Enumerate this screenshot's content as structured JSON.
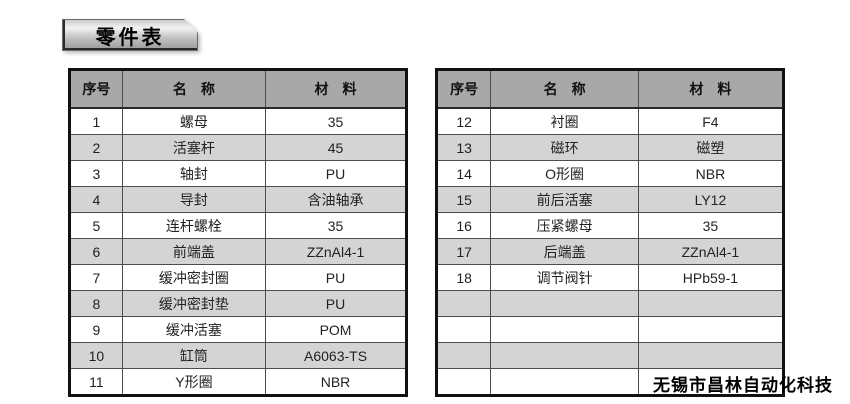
{
  "page": {
    "title": "零件表",
    "footer": "无锡市昌林自动化科技"
  },
  "colors": {
    "header_bg": "#a8a8a8",
    "alt_row_bg": "#d4d4d4",
    "row_bg": "#ffffff",
    "outer_border": "#111111",
    "inner_border": "#4d4d4d"
  },
  "tables": [
    {
      "name": "parts-table-left",
      "headers": [
        "序号",
        "名　称",
        "材　料"
      ],
      "rows": [
        {
          "seq": "1",
          "name": "螺母",
          "material": "35"
        },
        {
          "seq": "2",
          "name": "活塞杆",
          "material": "45"
        },
        {
          "seq": "3",
          "name": "轴封",
          "material": "PU"
        },
        {
          "seq": "4",
          "name": "导封",
          "material": "含油轴承"
        },
        {
          "seq": "5",
          "name": "连杆螺栓",
          "material": "35"
        },
        {
          "seq": "6",
          "name": "前端盖",
          "material": "ZZnAl4-1"
        },
        {
          "seq": "7",
          "name": "缓冲密封圈",
          "material": "PU"
        },
        {
          "seq": "8",
          "name": "缓冲密封垫",
          "material": "PU"
        },
        {
          "seq": "9",
          "name": "缓冲活塞",
          "material": "POM"
        },
        {
          "seq": "10",
          "name": "缸筒",
          "material": "A6063-TS"
        },
        {
          "seq": "11",
          "name": "Y形圈",
          "material": "NBR"
        }
      ]
    },
    {
      "name": "parts-table-right",
      "headers": [
        "序号",
        "名　称",
        "材　料"
      ],
      "rows": [
        {
          "seq": "12",
          "name": "衬圈",
          "material": "F4"
        },
        {
          "seq": "13",
          "name": "磁环",
          "material": "磁塑"
        },
        {
          "seq": "14",
          "name": "O形圈",
          "material": "NBR"
        },
        {
          "seq": "15",
          "name": "前后活塞",
          "material": "LY12"
        },
        {
          "seq": "16",
          "name": "压紧螺母",
          "material": "35"
        },
        {
          "seq": "17",
          "name": "后端盖",
          "material": "ZZnAl4-1"
        },
        {
          "seq": "18",
          "name": "调节阀针",
          "material": "HPb59-1"
        },
        {
          "seq": "",
          "name": "",
          "material": ""
        },
        {
          "seq": "",
          "name": "",
          "material": ""
        },
        {
          "seq": "",
          "name": "",
          "material": ""
        },
        {
          "seq": "",
          "name": "",
          "material": ""
        }
      ]
    }
  ]
}
